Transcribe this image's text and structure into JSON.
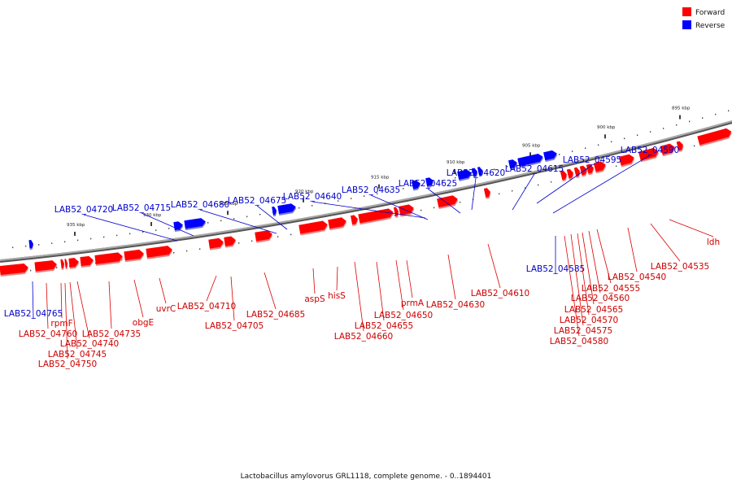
{
  "caption": "Lactobacillus amylovorus GRL1118, complete genome. - 0..1894401",
  "legend": [
    {
      "label": "Forward",
      "color": "#ff0000"
    },
    {
      "label": "Reverse",
      "color": "#0000ff"
    }
  ],
  "colors": {
    "forward": "#ff0000",
    "reverse": "#0000ff",
    "forward_label": "#cc0000",
    "reverse_label": "#0000cc",
    "backbone": "#888888"
  },
  "scale_ticks": [
    "935 kbp",
    "930 kbp",
    "925 kbp",
    "920 kbp",
    "915 kbp",
    "910 kbp",
    "905 kbp",
    "900 kbp",
    "895 kbp"
  ],
  "genes": [
    {
      "label": "LAB52_04765",
      "strand": "reverse"
    },
    {
      "label": "LAB52_04760",
      "strand": "forward"
    },
    {
      "label": "rpmF",
      "strand": "forward"
    },
    {
      "label": "LAB52_04750",
      "strand": "forward"
    },
    {
      "label": "LAB52_04745",
      "strand": "forward"
    },
    {
      "label": "LAB52_04740",
      "strand": "forward"
    },
    {
      "label": "LAB52_04735",
      "strand": "forward"
    },
    {
      "label": "obgE",
      "strand": "forward"
    },
    {
      "label": "uvrC",
      "strand": "forward"
    },
    {
      "label": "LAB52_04720",
      "strand": "reverse"
    },
    {
      "label": "LAB52_04715",
      "strand": "reverse"
    },
    {
      "label": "LAB52_04710",
      "strand": "forward"
    },
    {
      "label": "LAB52_04705",
      "strand": "forward"
    },
    {
      "label": "LAB52_04680",
      "strand": "reverse"
    },
    {
      "label": "LAB52_04675",
      "strand": "reverse"
    },
    {
      "label": "LAB52_04685",
      "strand": "forward"
    },
    {
      "label": "aspS",
      "strand": "forward"
    },
    {
      "label": "LAB52_04640",
      "strand": "reverse"
    },
    {
      "label": "hisS",
      "strand": "forward"
    },
    {
      "label": "LAB52_04660",
      "strand": "forward"
    },
    {
      "label": "LAB52_04655",
      "strand": "forward"
    },
    {
      "label": "LAB52_04650",
      "strand": "forward"
    },
    {
      "label": "prmA",
      "strand": "forward"
    },
    {
      "label": "LAB52_04635",
      "strand": "reverse"
    },
    {
      "label": "LAB52_04625",
      "strand": "reverse"
    },
    {
      "label": "LAB52_04630",
      "strand": "forward"
    },
    {
      "label": "LAB52_04620",
      "strand": "reverse"
    },
    {
      "label": "LAB52_04610",
      "strand": "forward"
    },
    {
      "label": "LAB52_04615",
      "strand": "reverse"
    },
    {
      "label": "LAB52_04595",
      "strand": "reverse"
    },
    {
      "label": "LAB52_04590",
      "strand": "reverse"
    },
    {
      "label": "LAB52_04585",
      "strand": "reverse"
    },
    {
      "label": "LAB52_04580",
      "strand": "forward"
    },
    {
      "label": "LAB52_04575",
      "strand": "forward"
    },
    {
      "label": "LAB52_04570",
      "strand": "forward"
    },
    {
      "label": "LAB52_04565",
      "strand": "forward"
    },
    {
      "label": "LAB52_04560",
      "strand": "forward"
    },
    {
      "label": "LAB52_04555",
      "strand": "forward"
    },
    {
      "label": "LAB52_04540",
      "strand": "forward"
    },
    {
      "label": "LAB52_04535",
      "strand": "forward"
    },
    {
      "label": "ldh",
      "strand": "forward"
    }
  ]
}
